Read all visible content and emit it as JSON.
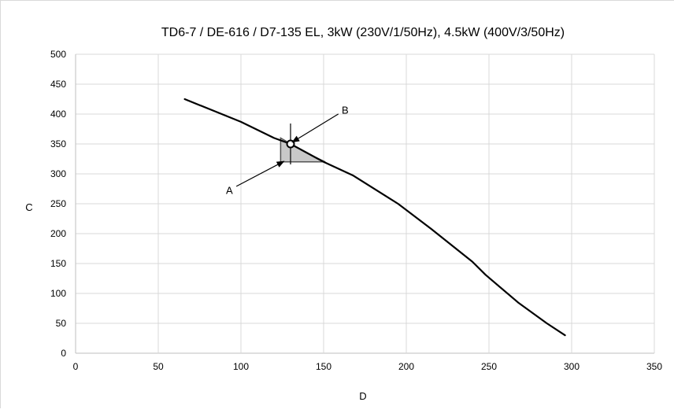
{
  "chart_data": {
    "type": "line",
    "title": "TD6-7 / DE-616 / D7-135 EL, 3kW (230V/1/50Hz), 4.5kW (400V/3/50Hz)",
    "xlabel": "D",
    "ylabel": "C",
    "xlim": [
      0,
      350
    ],
    "ylim": [
      0,
      500
    ],
    "x_ticks": [
      0,
      50,
      100,
      150,
      200,
      250,
      300,
      350
    ],
    "y_ticks": [
      0,
      50,
      100,
      150,
      200,
      250,
      300,
      350,
      400,
      450,
      500
    ],
    "grid": true,
    "series": [
      {
        "color": "#000000",
        "points": [
          [
            66,
            425
          ],
          [
            100,
            387
          ],
          [
            120,
            360
          ],
          [
            130,
            350
          ],
          [
            140,
            335
          ],
          [
            150,
            320
          ],
          [
            168,
            297
          ],
          [
            195,
            250
          ],
          [
            215,
            208
          ],
          [
            240,
            153
          ],
          [
            248,
            131
          ],
          [
            268,
            84
          ],
          [
            285,
            50
          ],
          [
            296,
            30
          ]
        ]
      }
    ],
    "region": {
      "color": "#c8c8c8",
      "points": [
        [
          124,
          360
        ],
        [
          124,
          320
        ],
        [
          151,
          320
        ],
        [
          139,
          336
        ]
      ]
    },
    "operating_point": {
      "x": 130,
      "y": 350
    },
    "annotations": [
      {
        "label": "A",
        "text_x": 93,
        "text_y": 273,
        "arrow_to": [
          126,
          321
        ]
      },
      {
        "label": "B",
        "text_x": 163,
        "text_y": 407,
        "arrow_to": [
          131,
          353
        ]
      }
    ]
  }
}
